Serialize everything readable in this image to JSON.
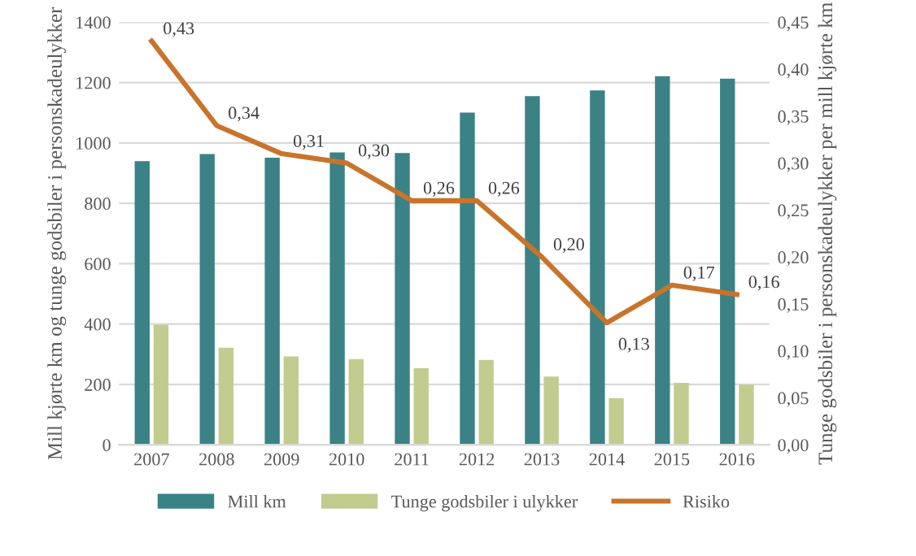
{
  "chart_data": {
    "type": "bar",
    "categories": [
      "2007",
      "2008",
      "2009",
      "2010",
      "2011",
      "2012",
      "2013",
      "2014",
      "2015",
      "2016"
    ],
    "series": [
      {
        "name": "Mill km",
        "color": "#3a8285",
        "values": [
          940,
          963,
          951,
          969,
          967,
          1101,
          1155,
          1174,
          1221,
          1213
        ]
      },
      {
        "name": "Tunge godsbiler i ulykker",
        "color": "#c3cc8f",
        "values": [
          398,
          322,
          293,
          284,
          254,
          281,
          226,
          154,
          205,
          199
        ]
      },
      {
        "name": "Risiko",
        "type": "line",
        "axis": "y2",
        "color": "#c8742b",
        "values": [
          0.43,
          0.34,
          0.31,
          0.3,
          0.26,
          0.26,
          0.2,
          0.13,
          0.17,
          0.16
        ],
        "value_labels": [
          "0,43",
          "0,34",
          "0,31",
          "0,30",
          "0,26",
          "0,26",
          "0,20",
          "0,13",
          "0,17",
          "0,16"
        ]
      }
    ],
    "ylabel": "Mill kjørte km og tunge godsbiler i personskadeulykker",
    "y2label": "Tunge godsbiler i personskadeulykker per mill kjørte km",
    "ylim": [
      0,
      1400
    ],
    "yticks": [
      0,
      200,
      400,
      600,
      800,
      1000,
      1200,
      1400
    ],
    "y2lim": [
      0,
      0.45
    ],
    "y2ticks": [
      {
        "value": 0,
        "label": "0,00"
      },
      {
        "value": 0.05,
        "label": "0,05"
      },
      {
        "value": 0.1,
        "label": "0,10"
      },
      {
        "value": 0.15,
        "label": "0,15"
      },
      {
        "value": 0.2,
        "label": "0,20"
      },
      {
        "value": 0.25,
        "label": "0,25"
      },
      {
        "value": 0.3,
        "label": "0,30"
      },
      {
        "value": 0.35,
        "label": "0,35"
      },
      {
        "value": 0.4,
        "label": "0,40"
      },
      {
        "value": 0.45,
        "label": "0,45"
      }
    ],
    "grid": "y",
    "legend": "bottom"
  }
}
